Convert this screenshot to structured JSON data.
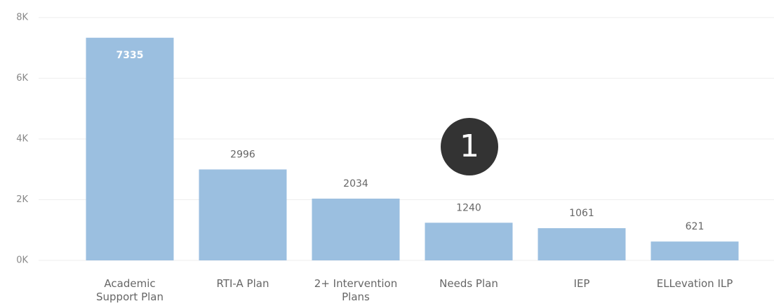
{
  "chart_data": {
    "type": "bar",
    "categories": [
      "Academic Support Plan",
      "RTI-A Plan",
      "2+ Intervention Plans",
      "Needs Plan",
      "IEP",
      "ELLevation ILP"
    ],
    "values": [
      7335,
      2996,
      2034,
      1240,
      1061,
      621
    ],
    "color": "#9bbfe0",
    "ylim": [
      0,
      8000
    ],
    "yticks": [
      {
        "value": 0,
        "label": "0K"
      },
      {
        "value": 2000,
        "label": "2K"
      },
      {
        "value": 4000,
        "label": "4K"
      },
      {
        "value": 6000,
        "label": "6K"
      },
      {
        "value": 8000,
        "label": "8K"
      }
    ],
    "grid": true,
    "annotation": "1"
  }
}
